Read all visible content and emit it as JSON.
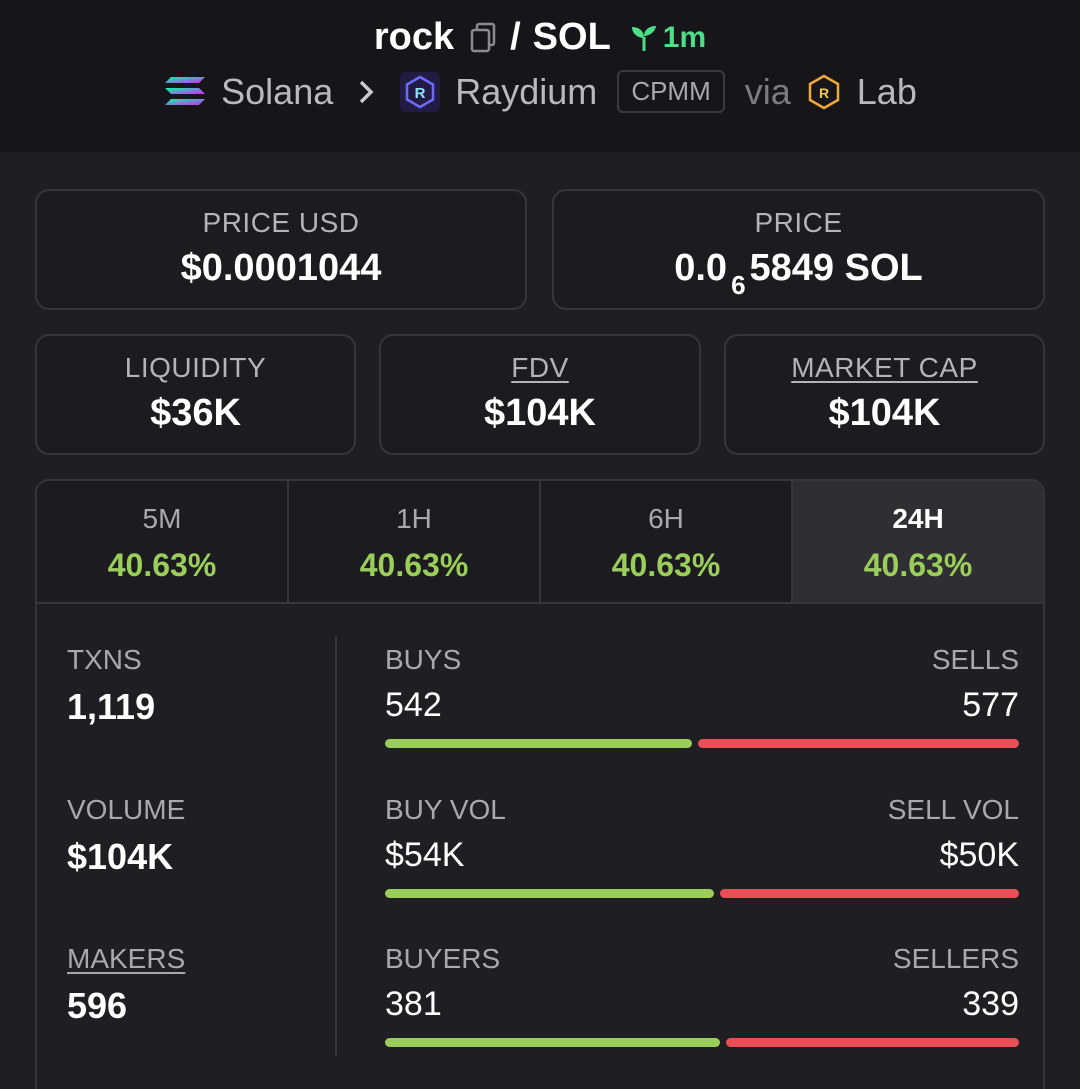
{
  "header": {
    "token": "rock",
    "separator": "/",
    "quote": "SOL",
    "age": "1m",
    "chain": "Solana",
    "dex": "Raydium",
    "pool_type": "CPMM",
    "via": "via",
    "launchpad": "Lab",
    "icons": [
      "copy-icon",
      "sprout-icon",
      "solana-icon",
      "chevron-right-icon",
      "raydium-icon",
      "lab-icon"
    ]
  },
  "price_usd": {
    "label": "PRICE USD",
    "value": "$0.0001044"
  },
  "price_native": {
    "label": "PRICE",
    "prefix": "0.0",
    "zeros": "6",
    "digits": "5849",
    "unit": "SOL"
  },
  "liquidity": {
    "label": "LIQUIDITY",
    "value": "$36K"
  },
  "fdv": {
    "label": "FDV",
    "value": "$104K"
  },
  "market_cap": {
    "label": "MARKET CAP",
    "value": "$104K"
  },
  "tabs": [
    {
      "label": "5M",
      "change": "40.63%"
    },
    {
      "label": "1H",
      "change": "40.63%"
    },
    {
      "label": "6H",
      "change": "40.63%"
    },
    {
      "label": "24H",
      "change": "40.63%"
    }
  ],
  "active_tab": "24H",
  "stats": {
    "txns": {
      "label": "TXNS",
      "value": "1,119"
    },
    "volume": {
      "label": "VOLUME",
      "value": "$104K"
    },
    "makers": {
      "label": "MAKERS",
      "value": "596"
    },
    "buys_sells": {
      "left_label": "BUYS",
      "right_label": "SELLS",
      "left": "542",
      "right": "577",
      "left_fraction": 0.484
    },
    "vol_split": {
      "left_label": "BUY VOL",
      "right_label": "SELL VOL",
      "left": "$54K",
      "right": "$50K",
      "left_fraction": 0.519
    },
    "makers_split": {
      "left_label": "BUYERS",
      "right_label": "SELLERS",
      "left": "381",
      "right": "339",
      "left_fraction": 0.529
    }
  },
  "colors": {
    "positive": "#9acd5a",
    "negative": "#ea4f56",
    "age": "#4ede88"
  }
}
